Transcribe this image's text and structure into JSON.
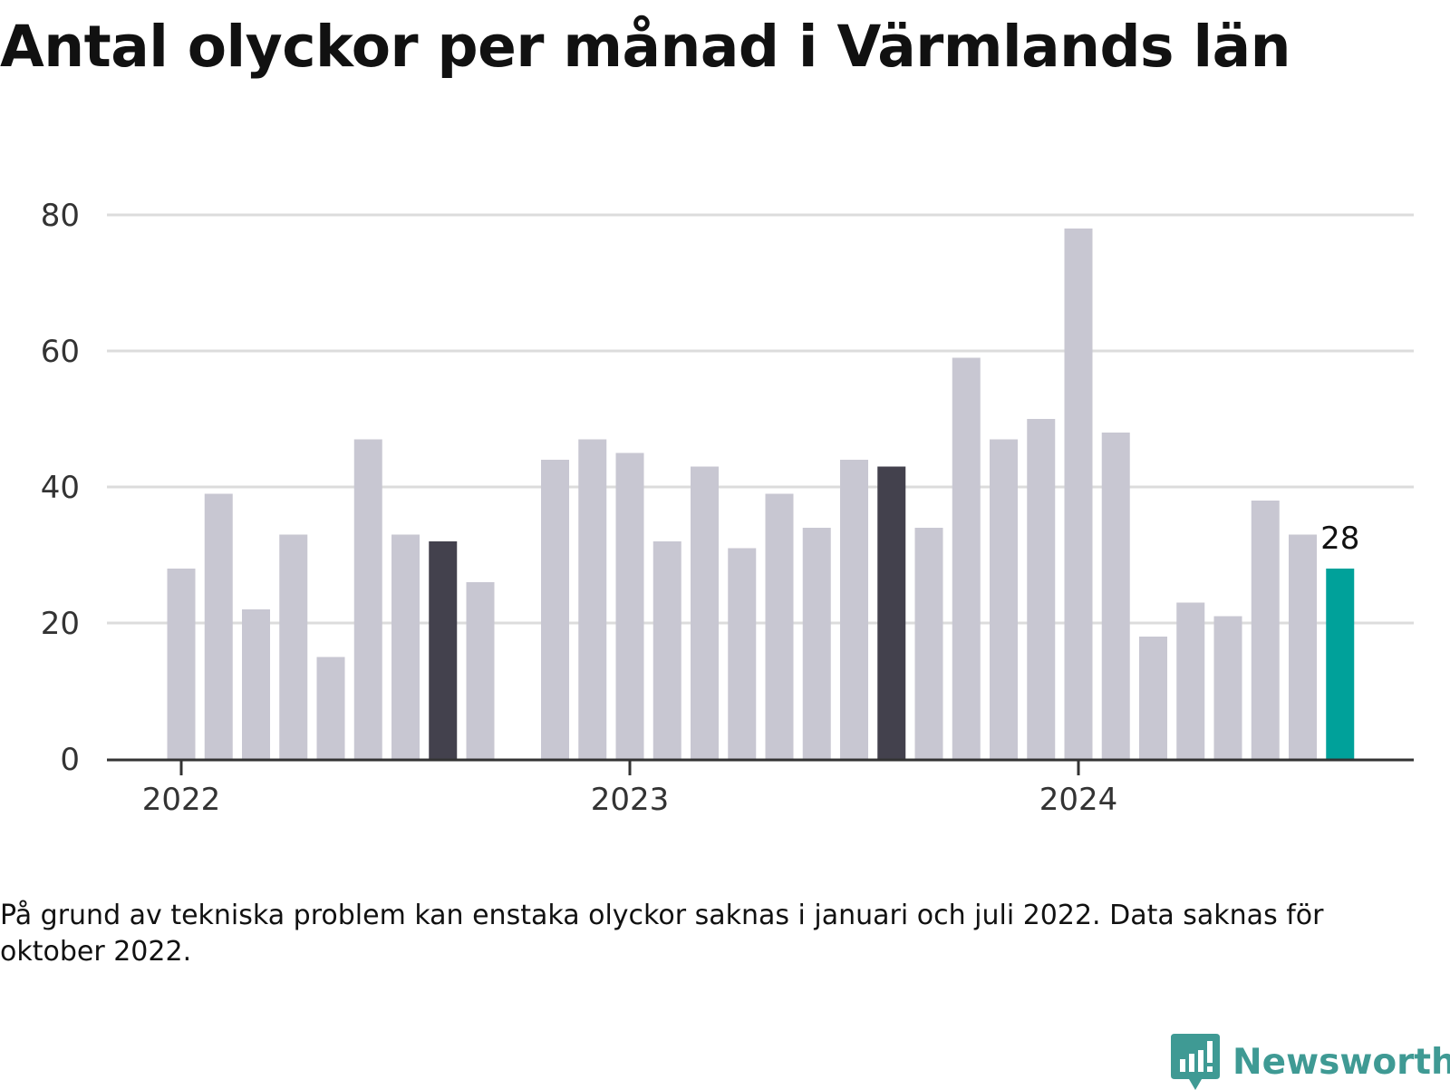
{
  "title": "Antal olyckor per månad i Värmlands län",
  "footnote": "På grund av tekniska problem kan enstaka olyckor saknas i januari och juli 2022. Data saknas för oktober 2022.",
  "brand": {
    "name": "Newsworthy",
    "icon": "newsworthy-logo-icon",
    "color": "#3f9a94"
  },
  "colors": {
    "bar": "#c8c7d2",
    "highlight": "#43414d",
    "latest": "#00a19a",
    "grid": "#dcdcdc",
    "axis": "#333333"
  },
  "chart_data": {
    "type": "bar",
    "title": "Antal olyckor per månad i Värmlands län",
    "xlabel": "",
    "ylabel": "",
    "ylim": [
      0,
      80
    ],
    "yticks": [
      0,
      20,
      40,
      60,
      80
    ],
    "grid": true,
    "x_tick_labels": [
      {
        "label": "2022",
        "month": "2022-01"
      },
      {
        "label": "2023",
        "month": "2023-01"
      },
      {
        "label": "2024",
        "month": "2024-01"
      }
    ],
    "months": [
      "2022-01",
      "2022-02",
      "2022-03",
      "2022-04",
      "2022-05",
      "2022-06",
      "2022-07",
      "2022-08",
      "2022-09",
      "2022-10",
      "2022-11",
      "2022-12",
      "2023-01",
      "2023-02",
      "2023-03",
      "2023-04",
      "2023-05",
      "2023-06",
      "2023-07",
      "2023-08",
      "2023-09",
      "2023-10",
      "2023-11",
      "2023-12",
      "2024-01",
      "2024-02",
      "2024-03",
      "2024-04",
      "2024-05",
      "2024-06",
      "2024-07",
      "2024-08"
    ],
    "values": [
      28,
      39,
      22,
      33,
      15,
      47,
      33,
      32,
      26,
      null,
      44,
      47,
      45,
      32,
      43,
      31,
      39,
      34,
      44,
      43,
      34,
      59,
      47,
      50,
      78,
      48,
      18,
      23,
      21,
      38,
      33,
      28
    ],
    "highlighted_months": [
      "2022-08",
      "2023-08"
    ],
    "latest": {
      "month": "2024-08",
      "value": 28,
      "label": "28"
    }
  }
}
